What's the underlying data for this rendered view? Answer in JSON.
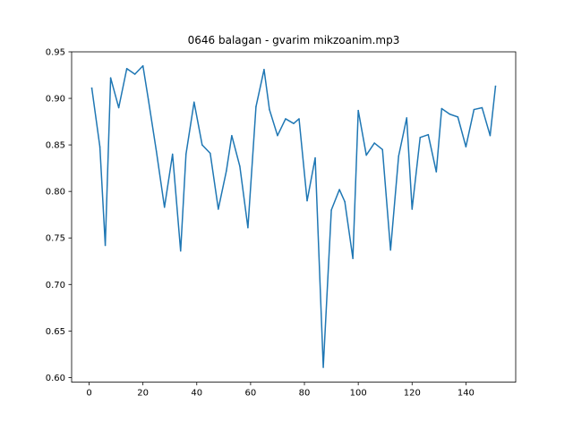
{
  "chart_data": {
    "type": "line",
    "title": "0646 balagan - gvarim mikzoanim.mp3",
    "xlabel": "",
    "ylabel": "",
    "xlim": [
      -6.5,
      158.5
    ],
    "ylim": [
      0.595,
      0.95
    ],
    "xticks": [
      0,
      20,
      40,
      60,
      80,
      100,
      120,
      140
    ],
    "xtick_labels": [
      "0",
      "20",
      "40",
      "60",
      "80",
      "100",
      "120",
      "140"
    ],
    "yticks": [
      0.6,
      0.65,
      0.7,
      0.75,
      0.8,
      0.85,
      0.9,
      0.95
    ],
    "ytick_labels": [
      "0.60",
      "0.65",
      "0.70",
      "0.75",
      "0.80",
      "0.85",
      "0.90",
      "0.95"
    ],
    "grid": false,
    "legend": "none",
    "line_color": "#1f77b4",
    "series": [
      {
        "x": [
          1,
          4,
          6,
          8,
          11,
          14,
          17,
          20,
          22,
          25,
          28,
          31,
          34,
          36,
          39,
          42,
          45,
          48,
          51,
          53,
          56,
          59,
          62,
          65,
          67,
          70,
          73,
          76,
          78,
          81,
          84,
          87,
          90,
          93,
          95,
          98,
          100,
          103,
          106,
          109,
          112,
          115,
          118,
          120,
          123,
          126,
          129,
          131,
          134,
          137,
          140,
          143,
          146,
          149,
          151
        ],
        "y": [
          0.911,
          0.848,
          0.742,
          0.922,
          0.89,
          0.932,
          0.926,
          0.935,
          0.899,
          0.843,
          0.783,
          0.84,
          0.736,
          0.84,
          0.896,
          0.85,
          0.841,
          0.781,
          0.822,
          0.86,
          0.827,
          0.761,
          0.891,
          0.931,
          0.888,
          0.86,
          0.878,
          0.873,
          0.878,
          0.79,
          0.836,
          0.611,
          0.78,
          0.802,
          0.789,
          0.728,
          0.887,
          0.839,
          0.852,
          0.845,
          0.737,
          0.838,
          0.879,
          0.781,
          0.858,
          0.861,
          0.821,
          0.889,
          0.883,
          0.88,
          0.848,
          0.888,
          0.89,
          0.86,
          0.913
        ]
      }
    ]
  }
}
